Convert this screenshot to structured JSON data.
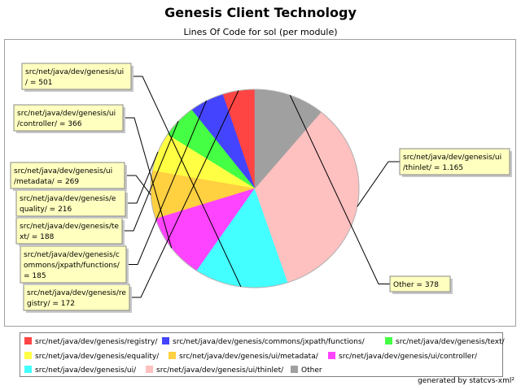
{
  "chart_data": {
    "type": "pie",
    "title": "Genesis Client Technology",
    "subtitle": "Lines Of Code for sol (per module)",
    "slices": [
      {
        "label": "src/net/java/dev/genesis/registry/",
        "value": 172,
        "color": "#ff4444"
      },
      {
        "label": "src/net/java/dev/genesis/commons/jxpath/functions/",
        "value": 185,
        "color": "#4444ff"
      },
      {
        "label": "src/net/java/dev/genesis/text/",
        "value": 188,
        "color": "#44ff44"
      },
      {
        "label": "src/net/java/dev/genesis/equality/",
        "value": 216,
        "color": "#ffff44"
      },
      {
        "label": "src/net/java/dev/genesis/ui/metadata/",
        "value": 269,
        "color": "#ffd040"
      },
      {
        "label": "src/net/java/dev/genesis/ui/controller/",
        "value": 366,
        "color": "#ff44ff"
      },
      {
        "label": "src/net/java/dev/genesis/ui/",
        "value": 501,
        "color": "#44ffff"
      },
      {
        "label": "src/net/java/dev/genesis/ui/thinlet/",
        "value": 1165,
        "color": "#ffc0c0"
      },
      {
        "label": "Other",
        "value": 378,
        "color": "#a0a0a0"
      }
    ],
    "labels": [
      [
        "src/net/java/dev/genesis/re",
        "gistry/ = 172"
      ],
      [
        "src/net/java/dev/genesis/c",
        "ommons/jxpath/functions/",
        "= 185"
      ],
      [
        "src/net/java/dev/genesis/te",
        "xt/ = 188"
      ],
      [
        "src/net/java/dev/genesis/e",
        "quality/ = 216"
      ],
      [
        "src/net/java/dev/genesis/ui",
        "/metadata/ = 269"
      ],
      [
        "src/net/java/dev/genesis/ui",
        "/controller/ = 366"
      ],
      [
        "src/net/java/dev/genesis/ui",
        "/ = 501"
      ],
      [
        "src/net/java/dev/genesis/ui",
        "/thinlet/ = 1.165"
      ],
      [
        "Other = 378"
      ]
    ],
    "legend_position": "bottom"
  },
  "footer": "generated by statcvs-xml²"
}
